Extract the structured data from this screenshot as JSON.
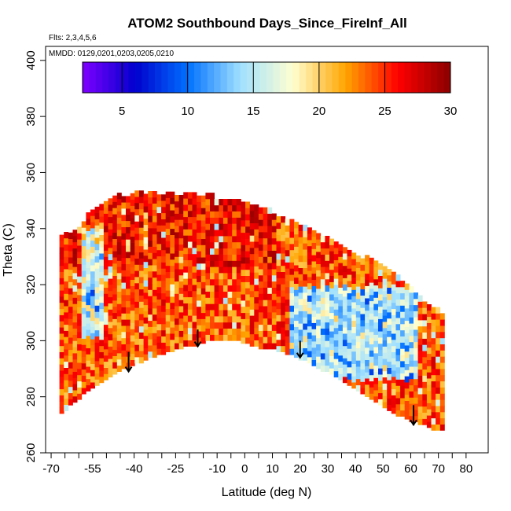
{
  "chart_data": {
    "type": "heatmap",
    "title": "ATOM2 Southbound Days_Since_FireInf_All",
    "subtitle_flights": "Flts: 2,3,4,5,6",
    "subtitle_dates": "MMDD: 0129,0201,0203,0205,0210",
    "xlabel": "Latitude (deg N)",
    "ylabel": "Theta (C)",
    "xlim": [
      -72,
      88
    ],
    "ylim": [
      260,
      405
    ],
    "x_tick_labels": [
      -70,
      -55,
      -40,
      -25,
      -10,
      0,
      10,
      20,
      30,
      40,
      50,
      60,
      70,
      80
    ],
    "x_minor_ticks": [
      -65,
      -60,
      -50,
      -45,
      -35,
      -30,
      -20,
      -15,
      -5,
      5,
      15,
      25,
      35,
      45,
      55,
      65,
      75
    ],
    "y_ticks": [
      260,
      280,
      300,
      320,
      340,
      360,
      380,
      400
    ],
    "colorbar": {
      "min": 2,
      "max": 30,
      "ticks": [
        5,
        10,
        15,
        20,
        25,
        30
      ],
      "colors": [
        "#7f00ff",
        "#0000cd",
        "#0070ff",
        "#a0e0ff",
        "#ffffd0",
        "#ffa500",
        "#ff0000",
        "#8b0000"
      ]
    },
    "coverage": {
      "lower_boundary": [
        [
          -67,
          274
        ],
        [
          -62,
          278
        ],
        [
          -57,
          282
        ],
        [
          -50,
          287
        ],
        [
          -42,
          291
        ],
        [
          -35,
          294
        ],
        [
          -25,
          297
        ],
        [
          -18,
          299
        ],
        [
          -10,
          301
        ],
        [
          -2,
          300
        ],
        [
          5,
          298
        ],
        [
          12,
          297
        ],
        [
          18,
          295
        ],
        [
          24,
          292
        ],
        [
          32,
          288
        ],
        [
          40,
          283
        ],
        [
          48,
          278
        ],
        [
          55,
          274
        ],
        [
          62,
          271
        ],
        [
          68,
          269
        ],
        [
          71,
          268
        ]
      ],
      "upper_boundary": [
        [
          -67,
          336
        ],
        [
          -60,
          340
        ],
        [
          -55,
          346
        ],
        [
          -45,
          351
        ],
        [
          -35,
          352
        ],
        [
          -25,
          352
        ],
        [
          -15,
          351
        ],
        [
          -5,
          350
        ],
        [
          5,
          347
        ],
        [
          15,
          343
        ],
        [
          25,
          338
        ],
        [
          35,
          333
        ],
        [
          45,
          328
        ],
        [
          55,
          322
        ],
        [
          62,
          316
        ],
        [
          68,
          311
        ],
        [
          71,
          309
        ]
      ]
    },
    "arrows": [
      {
        "lat": -42,
        "theta_top": 296,
        "theta_tip": 289
      },
      {
        "lat": -17,
        "theta_top": 304,
        "theta_tip": 298
      },
      {
        "lat": 20,
        "theta_top": 300,
        "theta_tip": 294
      },
      {
        "lat": 61,
        "theta_top": 277,
        "theta_tip": 270
      }
    ]
  }
}
